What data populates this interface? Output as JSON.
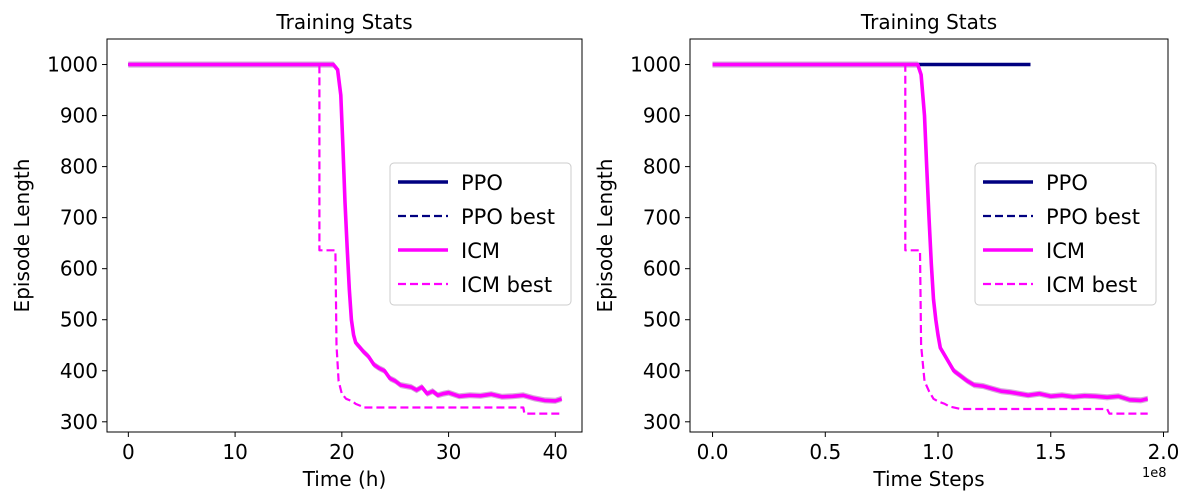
{
  "chart_data": [
    {
      "type": "line",
      "title": "Training Stats",
      "xlabel": "Time (h)",
      "ylabel": "Episode Length",
      "xlim": [
        -2,
        42.5
      ],
      "ylim": [
        280,
        1050
      ],
      "xticks": [
        0,
        10,
        20,
        30,
        40
      ],
      "xtick_labels": [
        "0",
        "10",
        "20",
        "30",
        "40"
      ],
      "yticks": [
        300,
        400,
        500,
        600,
        700,
        800,
        900,
        1000
      ],
      "ytick_labels": [
        "300",
        "400",
        "500",
        "600",
        "700",
        "800",
        "900",
        "1000"
      ],
      "x_offset_label": "",
      "legend_position": "center-right",
      "series": [
        {
          "name": "PPO",
          "color": "#000080",
          "style": "solid",
          "x": [
            0,
            19.3
          ],
          "y": [
            1000,
            1000
          ]
        },
        {
          "name": "PPO best",
          "color": "#000080",
          "style": "dashed",
          "x": [
            0,
            17.9
          ],
          "y": [
            1000,
            1000
          ]
        },
        {
          "name": "ICM",
          "color": "#ff00ff",
          "style": "solid",
          "band": true,
          "x": [
            0,
            19.2,
            19.6,
            19.9,
            20.1,
            20.3,
            20.5,
            20.7,
            20.9,
            21.1,
            21.3,
            21.6,
            22.0,
            22.5,
            23.0,
            23.5,
            24.0,
            24.5,
            25.0,
            25.5,
            26.0,
            26.5,
            27.0,
            27.5,
            28.0,
            28.5,
            29.0,
            29.5,
            30.0,
            31.0,
            32.0,
            33.0,
            34.0,
            35.0,
            36.0,
            37.0,
            38.0,
            39.0,
            40.0,
            40.6
          ],
          "y": [
            1000,
            1000,
            990,
            940,
            840,
            730,
            640,
            560,
            500,
            470,
            455,
            448,
            438,
            428,
            412,
            405,
            400,
            385,
            380,
            372,
            370,
            368,
            362,
            368,
            355,
            360,
            352,
            355,
            357,
            350,
            352,
            351,
            354,
            349,
            350,
            352,
            346,
            342,
            341,
            345
          ]
        },
        {
          "name": "ICM best",
          "color": "#ff00ff",
          "style": "dashed",
          "x": [
            0,
            17.9,
            17.9,
            19.4,
            19.5,
            19.7,
            20.0,
            20.4,
            21.0,
            21.3,
            21.9,
            22.0,
            37.0,
            37.1,
            40.6
          ],
          "y": [
            1000,
            1000,
            636,
            636,
            450,
            380,
            355,
            345,
            340,
            335,
            330,
            328,
            328,
            316,
            316
          ]
        }
      ]
    },
    {
      "type": "line",
      "title": "Training Stats",
      "xlabel": "Time Steps",
      "ylabel": "Episode Length",
      "xlim": [
        -0.1,
        2.02
      ],
      "ylim": [
        280,
        1050
      ],
      "xticks": [
        0,
        0.5,
        1.0,
        1.5,
        2.0
      ],
      "xtick_labels": [
        "0.0",
        "0.5",
        "1.0",
        "1.5",
        "2.0"
      ],
      "yticks": [
        300,
        400,
        500,
        600,
        700,
        800,
        900,
        1000
      ],
      "ytick_labels": [
        "300",
        "400",
        "500",
        "600",
        "700",
        "800",
        "900",
        "1000"
      ],
      "x_offset_label": "1e8",
      "legend_position": "center-right",
      "series": [
        {
          "name": "PPO",
          "color": "#000080",
          "style": "solid",
          "x": [
            0,
            1.41
          ],
          "y": [
            1000,
            1000
          ]
        },
        {
          "name": "PPO best",
          "color": "#000080",
          "style": "dashed",
          "x": [
            0,
            0.85
          ],
          "y": [
            1000,
            1000
          ]
        },
        {
          "name": "ICM",
          "color": "#ff00ff",
          "style": "solid",
          "band": true,
          "x": [
            0,
            0.91,
            0.925,
            0.94,
            0.95,
            0.96,
            0.97,
            0.98,
            0.99,
            1.0,
            1.01,
            1.03,
            1.05,
            1.07,
            1.1,
            1.13,
            1.16,
            1.2,
            1.24,
            1.28,
            1.32,
            1.36,
            1.4,
            1.45,
            1.5,
            1.55,
            1.6,
            1.65,
            1.7,
            1.75,
            1.8,
            1.85,
            1.9,
            1.93
          ],
          "y": [
            1000,
            1000,
            980,
            900,
            800,
            700,
            610,
            540,
            500,
            470,
            445,
            430,
            415,
            400,
            390,
            380,
            372,
            370,
            365,
            360,
            358,
            355,
            352,
            355,
            350,
            352,
            349,
            351,
            350,
            348,
            350,
            343,
            342,
            345
          ]
        },
        {
          "name": "ICM best",
          "color": "#ff00ff",
          "style": "dashed",
          "x": [
            0,
            0.855,
            0.855,
            0.92,
            0.925,
            0.94,
            0.96,
            0.98,
            1.0,
            1.03,
            1.05,
            1.1,
            1.75,
            1.76,
            1.93
          ],
          "y": [
            1000,
            1000,
            636,
            636,
            450,
            380,
            360,
            345,
            340,
            335,
            330,
            325,
            325,
            316,
            316
          ]
        }
      ]
    }
  ]
}
